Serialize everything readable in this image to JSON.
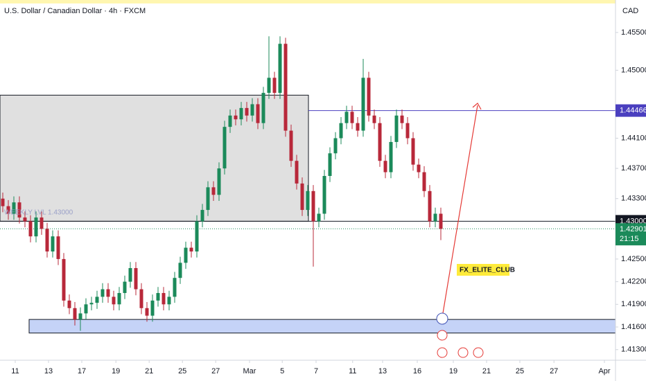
{
  "chart_data": {
    "type": "candlestick",
    "title": "U.S. Dollar / Canadian Dollar · 4h · FXCM",
    "currency": "CAD",
    "up_color": "#1b8a5a",
    "down_color": "#b8283a",
    "open": [
      1.433,
      1.432,
      1.431,
      1.4325,
      1.4305,
      1.43,
      1.428,
      1.4305,
      1.429,
      1.426,
      1.428,
      1.425,
      1.4195,
      1.4185,
      1.417,
      1.4178,
      1.419,
      1.4192,
      1.42,
      1.421,
      1.42,
      1.419,
      1.4205,
      1.422,
      1.4238,
      1.421,
      1.4185,
      1.4175,
      1.4195,
      1.4205,
      1.419,
      1.42,
      1.4225,
      1.4245,
      1.4265,
      1.426,
      1.43,
      1.4315,
      1.4345,
      1.4335,
      1.437,
      1.4425,
      1.444,
      1.4435,
      1.445,
      1.444,
      1.4455,
      1.443,
      1.447,
      1.449,
      1.447,
      1.4535,
      1.442,
      1.438,
      1.435,
      1.4315,
      1.434,
      1.43,
      1.431,
      1.436,
      1.439,
      1.441,
      1.443,
      1.4445,
      1.443,
      1.442,
      1.449,
      1.444,
      1.443,
      1.438,
      1.4365,
      1.4405,
      1.444,
      1.443,
      1.441,
      1.4375,
      1.4365,
      1.434,
      1.43,
      1.431
    ],
    "high": [
      1.4338,
      1.4328,
      1.4333,
      1.4333,
      1.4313,
      1.4308,
      1.4313,
      1.4313,
      1.4298,
      1.4288,
      1.4288,
      1.4258,
      1.4203,
      1.4193,
      1.4186,
      1.4198,
      1.42,
      1.4208,
      1.4218,
      1.4218,
      1.4208,
      1.4213,
      1.4228,
      1.4246,
      1.4246,
      1.4218,
      1.4193,
      1.4203,
      1.4213,
      1.4213,
      1.4208,
      1.4233,
      1.4253,
      1.4273,
      1.4273,
      1.4308,
      1.4323,
      1.4353,
      1.4353,
      1.4378,
      1.4433,
      1.4448,
      1.4448,
      1.4458,
      1.4458,
      1.4463,
      1.4463,
      1.4478,
      1.4545,
      1.4498,
      1.4545,
      1.4543,
      1.4428,
      1.4388,
      1.4358,
      1.4348,
      1.4348,
      1.4318,
      1.4368,
      1.4398,
      1.4418,
      1.4438,
      1.4453,
      1.4453,
      1.4438,
      1.4515,
      1.4498,
      1.4448,
      1.4438,
      1.4388,
      1.4413,
      1.4448,
      1.4448,
      1.4438,
      1.4418,
      1.4383,
      1.4373,
      1.4348,
      1.4318,
      1.4318
    ],
    "low": [
      1.4312,
      1.4302,
      1.4302,
      1.4297,
      1.4292,
      1.4272,
      1.4272,
      1.4282,
      1.4252,
      1.4252,
      1.4242,
      1.4187,
      1.4177,
      1.4162,
      1.4155,
      1.417,
      1.4182,
      1.4184,
      1.4192,
      1.4192,
      1.4182,
      1.4182,
      1.4197,
      1.4212,
      1.4202,
      1.4177,
      1.4167,
      1.4167,
      1.4187,
      1.4182,
      1.4182,
      1.4192,
      1.4217,
      1.4237,
      1.4252,
      1.4252,
      1.4292,
      1.4307,
      1.4327,
      1.4327,
      1.4362,
      1.4417,
      1.4427,
      1.4427,
      1.4432,
      1.4432,
      1.4422,
      1.4422,
      1.4462,
      1.4462,
      1.4462,
      1.4412,
      1.4372,
      1.4342,
      1.4307,
      1.4307,
      1.424,
      1.4292,
      1.4302,
      1.4352,
      1.4382,
      1.4402,
      1.4422,
      1.4422,
      1.4412,
      1.4412,
      1.4432,
      1.4422,
      1.4372,
      1.4357,
      1.4357,
      1.4397,
      1.4422,
      1.4402,
      1.4367,
      1.4357,
      1.4332,
      1.4292,
      1.4292,
      1.4275
    ],
    "close": [
      1.432,
      1.431,
      1.4325,
      1.4305,
      1.43,
      1.428,
      1.4305,
      1.429,
      1.426,
      1.428,
      1.425,
      1.4195,
      1.4185,
      1.417,
      1.4178,
      1.419,
      1.4192,
      1.42,
      1.421,
      1.42,
      1.419,
      1.4205,
      1.422,
      1.4238,
      1.421,
      1.4185,
      1.4175,
      1.4195,
      1.4205,
      1.419,
      1.42,
      1.4225,
      1.4245,
      1.4265,
      1.426,
      1.43,
      1.4315,
      1.4345,
      1.4335,
      1.437,
      1.4425,
      1.444,
      1.4435,
      1.445,
      1.444,
      1.4455,
      1.443,
      1.447,
      1.449,
      1.447,
      1.4535,
      1.442,
      1.438,
      1.435,
      1.4315,
      1.434,
      1.43,
      1.431,
      1.436,
      1.439,
      1.441,
      1.443,
      1.4445,
      1.443,
      1.442,
      1.449,
      1.444,
      1.443,
      1.438,
      1.4365,
      1.4405,
      1.444,
      1.443,
      1.441,
      1.4375,
      1.4365,
      1.434,
      1.43,
      1.431,
      1.429
    ],
    "xlim": [
      -0.5,
      110.5
    ],
    "xticks": [
      {
        "value": 2.25,
        "label": "11"
      },
      {
        "value": 8.25,
        "label": "13"
      },
      {
        "value": 14.25,
        "label": "17"
      },
      {
        "value": 20.4,
        "label": "19"
      },
      {
        "value": 26.4,
        "label": "21"
      },
      {
        "value": 32.4,
        "label": "25"
      },
      {
        "value": 38.4,
        "label": "27"
      },
      {
        "value": 44.5,
        "label": "Mar"
      },
      {
        "value": 50.4,
        "label": "5"
      },
      {
        "value": 56.5,
        "label": "7"
      },
      {
        "value": 63.1,
        "label": "11"
      },
      {
        "value": 68.5,
        "label": "13"
      },
      {
        "value": 74.75,
        "label": "16"
      },
      {
        "value": 81.25,
        "label": "19"
      },
      {
        "value": 87.25,
        "label": "21"
      },
      {
        "value": 93.25,
        "label": "25"
      },
      {
        "value": 99.4,
        "label": "27"
      },
      {
        "value": 108.5,
        "label": "Apr"
      }
    ],
    "ylim": [
      1.4116,
      1.4593
    ],
    "yticks": [
      {
        "value": 1.455,
        "label": "1.45500"
      },
      {
        "value": 1.45,
        "label": "1.45000"
      },
      {
        "value": 1.441,
        "label": "1.44100"
      },
      {
        "value": 1.437,
        "label": "1.43700"
      },
      {
        "value": 1.433,
        "label": "1.43300"
      },
      {
        "value": 1.425,
        "label": "1.42500"
      },
      {
        "value": 1.422,
        "label": "1.42200"
      },
      {
        "value": 1.419,
        "label": "1.41900"
      },
      {
        "value": 1.416,
        "label": "1.41600"
      },
      {
        "value": 1.413,
        "label": "1.41300"
      }
    ],
    "zones": [
      {
        "top": 1.4467,
        "bottom": 1.43,
        "color": "#e0e0e0"
      },
      {
        "top": 1.417,
        "bottom": 1.4152,
        "color": "#c5d3f7"
      }
    ],
    "levels": [
      {
        "value": 1.44466,
        "label": "1.44466",
        "color": "#4a3fbf"
      },
      {
        "value": 1.43,
        "label": "1.43000",
        "color": "#131722"
      }
    ],
    "last_price": {
      "value": 1.42901,
      "label": "1.42901",
      "countdown": "21:15",
      "color": "#1b8a5a"
    },
    "annotations": [
      "WEEKLY LVL 1.43000",
      "FX_ELITE_CLUB"
    ]
  }
}
